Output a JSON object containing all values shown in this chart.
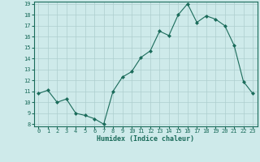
{
  "x": [
    0,
    1,
    2,
    3,
    4,
    5,
    6,
    7,
    8,
    9,
    10,
    11,
    12,
    13,
    14,
    15,
    16,
    17,
    18,
    19,
    20,
    21,
    22,
    23
  ],
  "y": [
    10.8,
    11.1,
    10.0,
    10.3,
    9.0,
    8.8,
    8.5,
    8.0,
    11.0,
    12.3,
    12.8,
    14.1,
    14.7,
    16.5,
    16.1,
    18.0,
    19.0,
    17.3,
    17.9,
    17.6,
    17.0,
    15.2,
    11.9,
    10.8
  ],
  "xlabel": "Humidex (Indice chaleur)",
  "ylim_min": 8,
  "ylim_max": 19,
  "xlim_min": -0.5,
  "xlim_max": 23.5,
  "yticks": [
    8,
    9,
    10,
    11,
    12,
    13,
    14,
    15,
    16,
    17,
    18,
    19
  ],
  "xticks": [
    0,
    1,
    2,
    3,
    4,
    5,
    6,
    7,
    8,
    9,
    10,
    11,
    12,
    13,
    14,
    15,
    16,
    17,
    18,
    19,
    20,
    21,
    22,
    23
  ],
  "line_color": "#1a6b5a",
  "marker": "D",
  "marker_size": 2.0,
  "bg_color": "#ceeaea",
  "grid_color": "#aecece",
  "xlabel_fontsize": 6.0,
  "tick_fontsize": 5.0
}
